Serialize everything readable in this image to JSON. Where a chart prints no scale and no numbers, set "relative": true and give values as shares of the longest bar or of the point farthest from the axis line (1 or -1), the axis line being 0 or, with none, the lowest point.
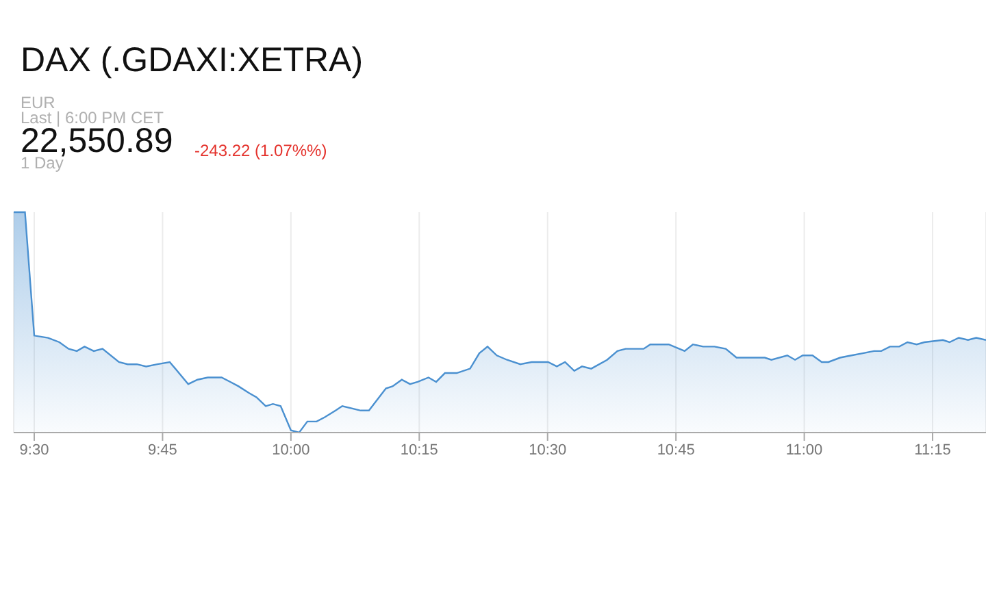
{
  "chart_data": {
    "type": "area",
    "title": "DAX (.GDAXI:XETRA)",
    "subtitle": "EUR",
    "annotations": [
      "Last | 6:00 PM CET",
      "22,550.89",
      "-243.22 (1.07%%)",
      "1 Day"
    ],
    "relative": true,
    "color": "#4a90d0",
    "grid": "x",
    "marker": "none",
    "line_style": "solid",
    "xlim": [
      9.46,
      11.354
    ],
    "xticks": [
      {
        "value": 9.5,
        "label": "9:30"
      },
      {
        "value": 9.75,
        "label": "9:45"
      },
      {
        "value": 10,
        "label": "10:00"
      },
      {
        "value": 10.25,
        "label": "10:15"
      },
      {
        "value": 10.5,
        "label": "10:30"
      },
      {
        "value": 10.75,
        "label": "10:45"
      },
      {
        "value": 11,
        "label": "11:00"
      },
      {
        "value": 11.25,
        "label": "11:15"
      }
    ],
    "x": [
      9.46,
      9.482,
      9.5,
      9.527,
      9.549,
      9.567,
      9.583,
      9.598,
      9.616,
      9.633,
      9.665,
      9.682,
      9.7,
      9.718,
      9.74,
      9.764,
      9.8,
      9.818,
      9.838,
      9.865,
      9.882,
      9.898,
      9.918,
      9.933,
      9.951,
      9.965,
      9.98,
      10.0,
      10.016,
      10.032,
      10.05,
      10.066,
      10.087,
      10.1,
      10.136,
      10.152,
      10.185,
      10.198,
      10.216,
      10.232,
      10.247,
      10.268,
      10.283,
      10.3,
      10.323,
      10.349,
      10.367,
      10.383,
      10.401,
      10.421,
      10.447,
      10.469,
      10.501,
      10.518,
      10.534,
      10.552,
      10.567,
      10.585,
      10.616,
      10.636,
      10.652,
      10.669,
      10.687,
      10.7,
      10.736,
      10.767,
      10.783,
      10.803,
      10.825,
      10.847,
      10.868,
      10.923,
      10.936,
      10.967,
      10.982,
      10.997,
      11.016,
      11.034,
      11.047,
      11.07,
      11.092,
      11.114,
      11.136,
      11.15,
      11.167,
      11.185,
      11.201,
      11.219,
      11.234,
      11.27,
      11.283,
      11.301,
      11.319,
      11.335,
      11.354
    ],
    "values": [
      1.0,
      1.0,
      0.44,
      0.43,
      0.41,
      0.38,
      0.37,
      0.39,
      0.37,
      0.38,
      0.32,
      0.31,
      0.31,
      0.3,
      0.31,
      0.32,
      0.22,
      0.24,
      0.25,
      0.25,
      0.23,
      0.21,
      0.18,
      0.16,
      0.12,
      0.13,
      0.12,
      0.01,
      0.0,
      0.05,
      0.05,
      0.07,
      0.1,
      0.12,
      0.1,
      0.1,
      0.2,
      0.21,
      0.24,
      0.22,
      0.23,
      0.25,
      0.23,
      0.27,
      0.27,
      0.29,
      0.36,
      0.39,
      0.35,
      0.33,
      0.31,
      0.32,
      0.32,
      0.3,
      0.32,
      0.28,
      0.3,
      0.29,
      0.33,
      0.37,
      0.38,
      0.38,
      0.38,
      0.4,
      0.4,
      0.37,
      0.4,
      0.39,
      0.39,
      0.38,
      0.34,
      0.34,
      0.33,
      0.35,
      0.33,
      0.35,
      0.35,
      0.32,
      0.32,
      0.34,
      0.35,
      0.36,
      0.37,
      0.37,
      0.39,
      0.39,
      0.41,
      0.4,
      0.41,
      0.42,
      0.41,
      0.43,
      0.42,
      0.43,
      0.42
    ]
  }
}
